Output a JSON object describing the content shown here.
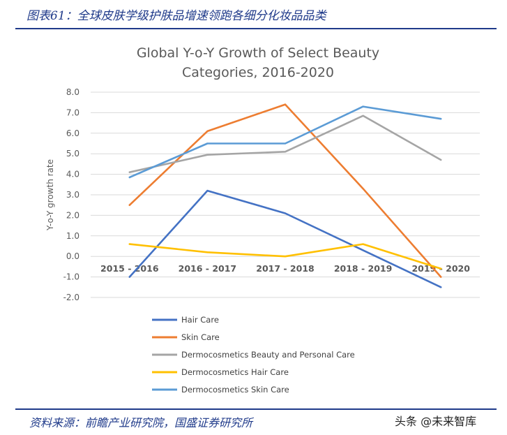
{
  "figure": {
    "caption": "图表61：全球皮肤学级护肤品增速领跑各细分化妆品品类",
    "source": "资料来源：前瞻产业研究院，国盛证券研究所",
    "watermark": "头条 @未来智库"
  },
  "colors": {
    "caption": "#1f3a8a",
    "grid": "#d9d9d9",
    "axis_text": "#595959",
    "title": "#595959"
  },
  "chart_data": {
    "type": "line",
    "title_lines": [
      "Global Y-o-Y Growth of Select Beauty",
      "Categories, 2016-2020"
    ],
    "xlabel": "",
    "ylabel": "Y-o-Y growth rate",
    "categories": [
      "2015 - 2016",
      "2016 - 2017",
      "2017 - 2018",
      "2018 - 2019",
      "2019 - 2020"
    ],
    "ylim": [
      -2.0,
      8.0
    ],
    "yticks": [
      "8.0",
      "7.0",
      "6.0",
      "5.0",
      "4.0",
      "3.0",
      "2.0",
      "1.0",
      "0.0",
      "-1.0",
      "-2.0"
    ],
    "grid": true,
    "legend_position": "bottom-left",
    "series": [
      {
        "name": "Hair Care",
        "color": "#4472c4",
        "values": [
          -1.0,
          3.2,
          2.1,
          0.3,
          -1.5
        ]
      },
      {
        "name": "Skin Care",
        "color": "#ed7d31",
        "values": [
          2.5,
          6.1,
          7.4,
          3.3,
          -1.0
        ]
      },
      {
        "name": "Dermocosmetics Beauty and Personal Care",
        "color": "#a5a5a5",
        "values": [
          4.1,
          4.95,
          5.1,
          6.85,
          4.7
        ]
      },
      {
        "name": "Dermocosmetics Hair Care",
        "color": "#ffc000",
        "values": [
          0.6,
          0.2,
          0.0,
          0.6,
          -0.6
        ]
      },
      {
        "name": "Dermocosmetics Skin Care",
        "color": "#5b9bd5",
        "values": [
          3.85,
          5.5,
          5.5,
          7.3,
          6.7
        ]
      }
    ]
  }
}
